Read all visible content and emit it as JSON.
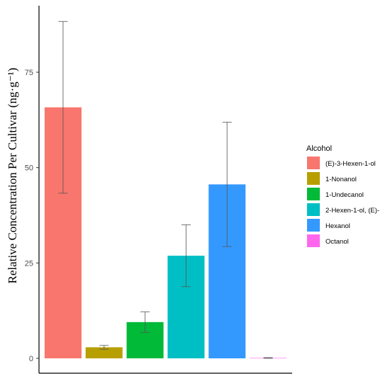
{
  "chart_data": {
    "type": "bar",
    "categories": [
      "(E)-3-Hexen-1-ol",
      "1-Nonanol",
      "1-Undecanol",
      "2-Hexen-1-ol, (E)-",
      "Hexanol",
      "Octanol"
    ],
    "values": [
      65.8,
      2.9,
      9.5,
      26.9,
      45.6,
      0.1
    ],
    "error_low": [
      43.3,
      2.4,
      6.8,
      18.8,
      29.3,
      0.0
    ],
    "error_high": [
      88.3,
      3.4,
      12.2,
      35.0,
      61.9,
      0.2
    ],
    "colors": [
      "#F8766D",
      "#B79F00",
      "#00BA38",
      "#00BFC4",
      "#3399FF",
      "#FF66EE"
    ],
    "ylabel": "Relative Concentration Per Cultivar (ng·g⁻¹)",
    "xlabel": "",
    "ylim": [
      -3,
      92
    ],
    "yticks": [
      "0",
      "25",
      "50",
      "75"
    ],
    "grid": false,
    "legend": {
      "title": "Alcohol",
      "position": "right",
      "entries": [
        "(E)-3-Hexen-1-ol",
        "1-Nonanol",
        "1-Undecanol",
        "2-Hexen-1-ol, (E)-",
        "Hexanol",
        "Octanol"
      ]
    }
  }
}
